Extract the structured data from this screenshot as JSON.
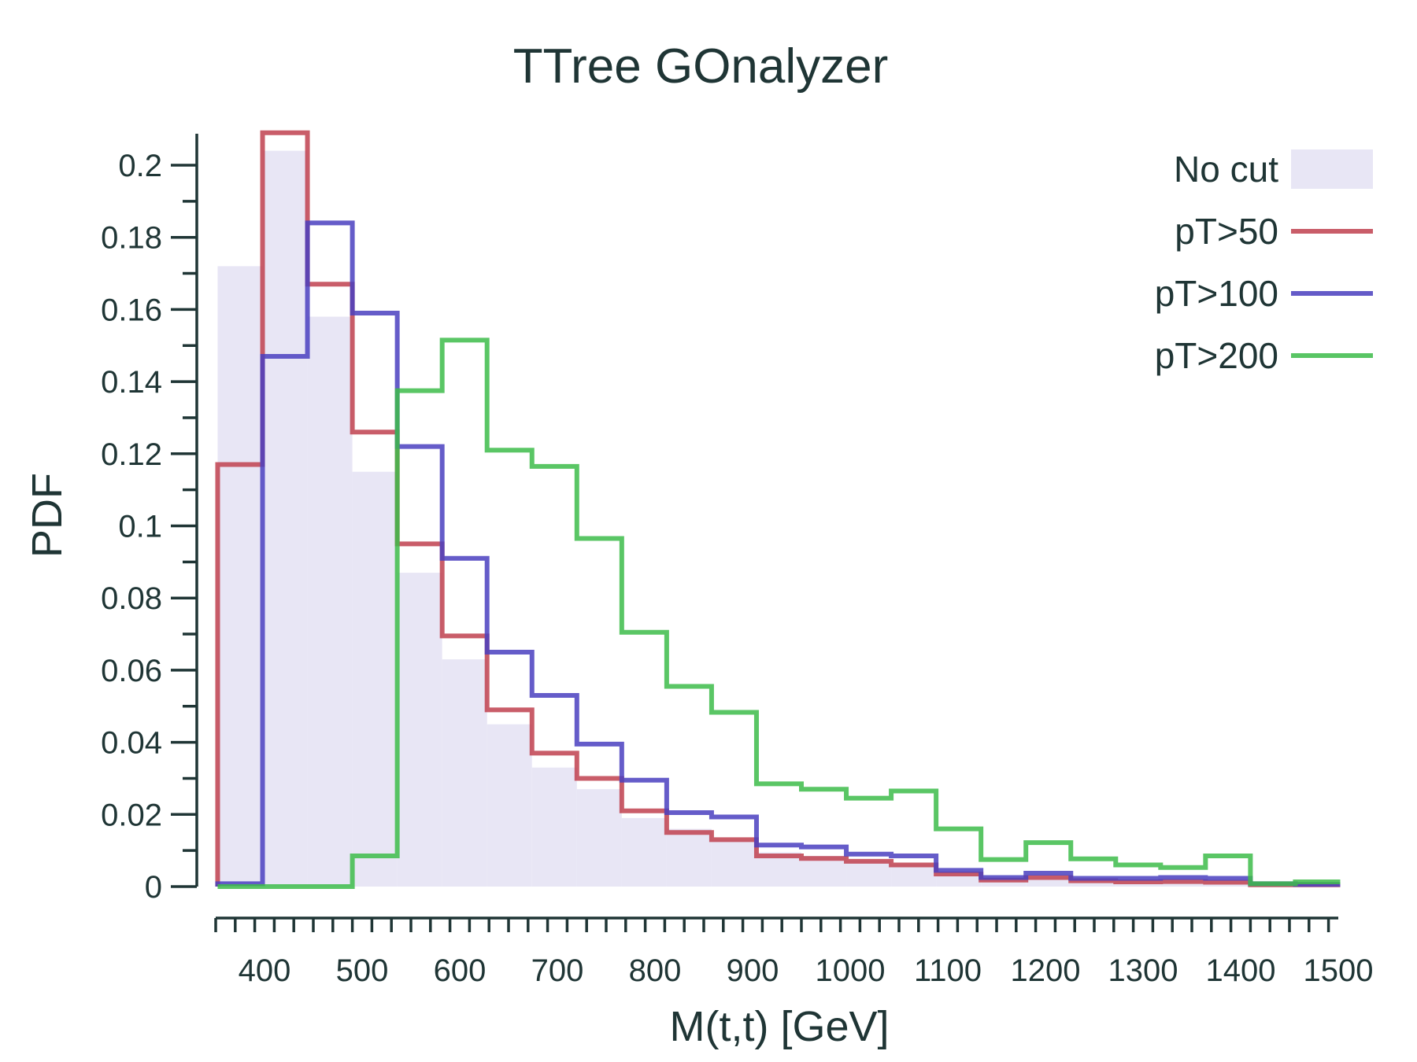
{
  "chart_data": {
    "type": "histogram",
    "title": "TTree GOnalyzer",
    "xlabel": "M(t,t) [GeV]",
    "ylabel": "PDF",
    "xlim": [
      350,
      1500
    ],
    "ylim": [
      0,
      0.2
    ],
    "x_ticks": [
      400,
      500,
      600,
      700,
      800,
      900,
      1000,
      1100,
      1200,
      1300,
      1400,
      1500
    ],
    "x_tick_labels": [
      "400",
      "500",
      "600",
      "700",
      "800",
      "900",
      "1000",
      "1100",
      "1200",
      "1300",
      "1400",
      "1500"
    ],
    "y_ticks": [
      0,
      0.02,
      0.04,
      0.06,
      0.08,
      0.1,
      0.12,
      0.14,
      0.16,
      0.18,
      0.2
    ],
    "y_tick_labels": [
      "0",
      "0.02",
      "0.04",
      "0.06",
      "0.08",
      "0.1",
      "0.12",
      "0.14",
      "0.16",
      "0.18",
      "0.2"
    ],
    "bin_edges": [
      352,
      398,
      444,
      490,
      536,
      582,
      628,
      674,
      720,
      766,
      812,
      858,
      904,
      950,
      996,
      1042,
      1088,
      1134,
      1180,
      1226,
      1272,
      1318,
      1364,
      1410,
      1456,
      1502
    ],
    "legend_position": "top-right",
    "series": [
      {
        "name": "No cut",
        "style": "filled",
        "color": "#e8e6f5",
        "values": [
          0.172,
          0.204,
          0.158,
          0.115,
          0.087,
          0.063,
          0.045,
          0.033,
          0.027,
          0.019,
          0.016,
          0.013,
          0.0095,
          0.0085,
          0.0072,
          0.0062,
          0.004,
          0.0023,
          0.0028,
          0.0018,
          0.0015,
          0.0015,
          0.0013,
          0.0007,
          0.0004
        ]
      },
      {
        "name": "pT>50",
        "style": "step",
        "color": "#c0414f",
        "values": [
          0.117,
          0.209,
          0.167,
          0.126,
          0.095,
          0.0695,
          0.049,
          0.037,
          0.03,
          0.021,
          0.015,
          0.013,
          0.0085,
          0.0078,
          0.007,
          0.006,
          0.0035,
          0.0018,
          0.0025,
          0.0016,
          0.0013,
          0.0014,
          0.0012,
          0.0005,
          0.0005
        ]
      },
      {
        "name": "pT>100",
        "style": "step",
        "color": "#4a3fbf",
        "values": [
          0.0008,
          0.147,
          0.184,
          0.159,
          0.122,
          0.091,
          0.065,
          0.053,
          0.0395,
          0.0295,
          0.0205,
          0.0193,
          0.0115,
          0.011,
          0.009,
          0.0085,
          0.0045,
          0.0025,
          0.0037,
          0.0023,
          0.0023,
          0.0025,
          0.0023,
          0.0008,
          0.0006
        ]
      },
      {
        "name": "pT>200",
        "style": "step",
        "color": "#3dbc4a",
        "values": [
          0.0,
          0.0,
          0.0,
          0.0085,
          0.1375,
          0.1515,
          0.121,
          0.1165,
          0.0965,
          0.0705,
          0.0555,
          0.0483,
          0.0285,
          0.027,
          0.0245,
          0.0265,
          0.016,
          0.0075,
          0.0122,
          0.0077,
          0.006,
          0.0053,
          0.0085,
          0.0008,
          0.0013
        ]
      }
    ]
  }
}
